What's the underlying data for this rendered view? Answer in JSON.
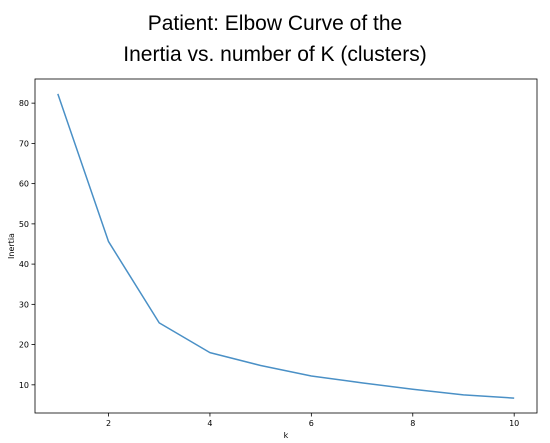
{
  "title_lines": [
    "Patient: Elbow Curve of the",
    "Inertia vs. number of K (clusters)"
  ],
  "chart_data": {
    "type": "line",
    "title": "Patient: Elbow Curve of the Inertia vs. number of K (clusters)",
    "xlabel": "k",
    "ylabel": "Inertia",
    "x": [
      1,
      2,
      3,
      4,
      5,
      6,
      7,
      8,
      9,
      10
    ],
    "series": [
      {
        "values": [
          82.3,
          45.6,
          25.4,
          18.0,
          14.8,
          12.2,
          10.5,
          8.9,
          7.5,
          6.7
        ]
      }
    ],
    "xlim": [
      0.55,
      10.45
    ],
    "ylim": [
      3.0,
      86.0
    ],
    "xticks": [
      2,
      4,
      6,
      8,
      10
    ],
    "yticks": [
      10,
      20,
      30,
      40,
      50,
      60,
      70,
      80
    ],
    "grid": false,
    "legend": "none",
    "line_color": "#4a90c6"
  }
}
